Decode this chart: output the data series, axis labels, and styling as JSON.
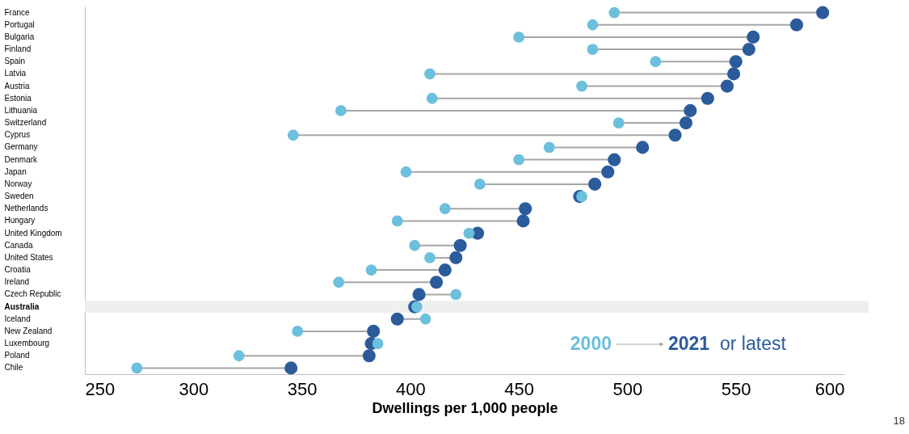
{
  "chart_data": {
    "type": "scatter",
    "orientation": "horizontal",
    "categories": [
      "France",
      "Portugal",
      "Bulgaria",
      "Finland",
      "Spain",
      "Latvia",
      "Austria",
      "Estonia",
      "Lithuania",
      "Switzerland",
      "Cyprus",
      "Germany",
      "Denmark",
      "Japan",
      "Norway",
      "Sweden",
      "Netherlands",
      "Hungary",
      "United Kingdom",
      "Canada",
      "United States",
      "Croatia",
      "Ireland",
      "Czech Republic",
      "Australia",
      "Iceland",
      "New Zealand",
      "Luxembourg",
      "Poland",
      "Chile"
    ],
    "series": [
      {
        "name": "2000",
        "color": "#6cbfdd",
        "values": [
          494,
          484,
          450,
          484,
          513,
          409,
          479,
          410,
          368,
          496,
          346,
          464,
          450,
          398,
          432,
          479,
          416,
          394,
          427,
          402,
          409,
          382,
          367,
          421,
          403,
          407,
          348,
          385,
          321,
          274
        ]
      },
      {
        "name": "2021 or latest",
        "color": "#2b5b9b",
        "values": [
          590,
          578,
          558,
          556,
          550,
          549,
          546,
          537,
          529,
          527,
          522,
          507,
          494,
          491,
          485,
          478,
          453,
          452,
          431,
          423,
          421,
          416,
          412,
          404,
          402,
          394,
          383,
          382,
          381,
          345
        ]
      }
    ],
    "xlim": [
      250,
      600
    ],
    "xticks": [
      250,
      300,
      350,
      400,
      450,
      500,
      550,
      600
    ],
    "xlabel": "Dwellings per 1,000 people",
    "bands": [
      {
        "axis": "y",
        "from": "Australia",
        "to": "Australia",
        "color": "#efefef"
      }
    ],
    "legend": "bottom right",
    "grid": false,
    "marker": "circle",
    "annotations": [
      "18"
    ]
  }
}
